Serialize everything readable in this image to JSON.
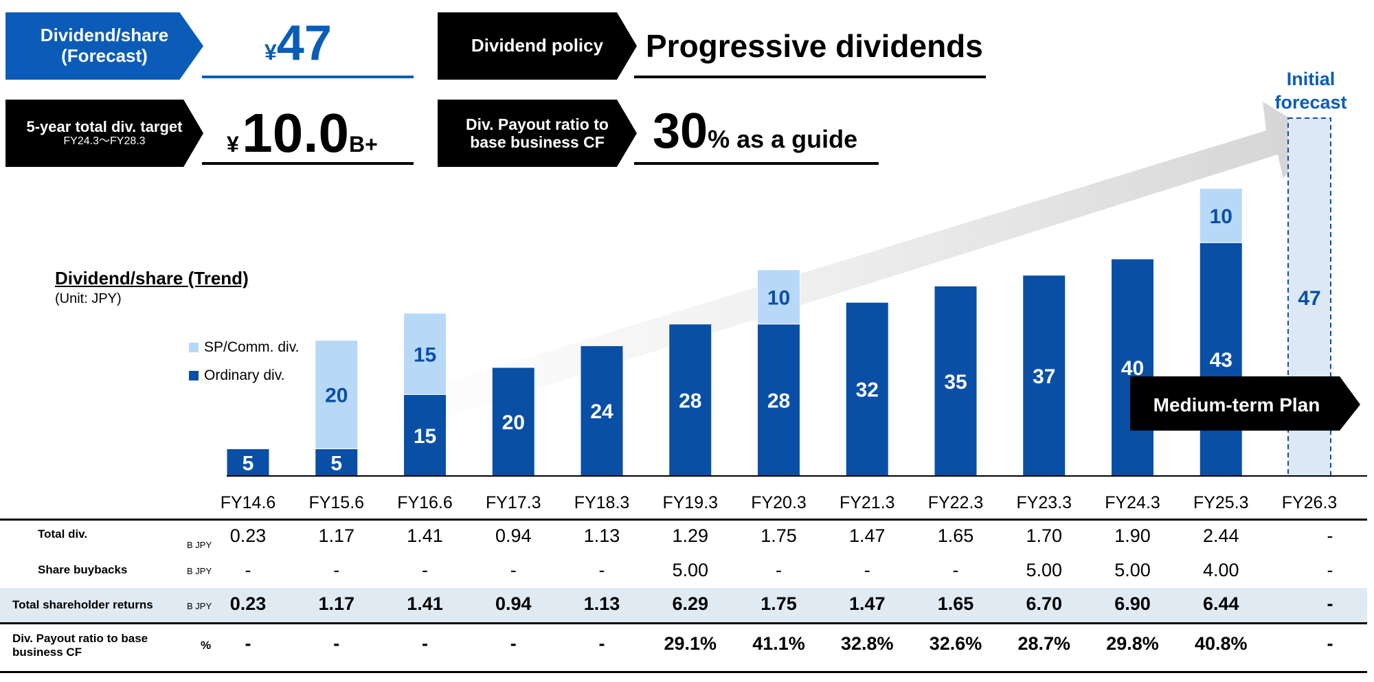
{
  "header": {
    "dividend_forecast_label": "Dividend/share\n(Forecast)",
    "dividend_forecast_currency": "¥",
    "dividend_forecast_value": "47",
    "total_target_label": "5-year total div. target",
    "total_target_period": "FY24.3～FY28.3",
    "total_target_currency": "¥",
    "total_target_value": "10.0",
    "total_target_suffix": "B+",
    "policy_label": "Dividend policy",
    "policy_value": "Progressive dividends",
    "payout_label": "Div. Payout ratio to\nbase business CF",
    "payout_value": "30",
    "payout_suffix": "% as a guide"
  },
  "chart_data": {
    "type": "bar",
    "title": "Dividend/share (Trend)",
    "unit_label": "(Unit: JPY)",
    "legend": [
      "SP/Comm. div.",
      "Ordinary div."
    ],
    "categories": [
      "FY14.6",
      "FY15.6",
      "FY16.6",
      "FY17.3",
      "FY18.3",
      "FY19.3",
      "FY20.3",
      "FY21.3",
      "FY22.3",
      "FY23.3",
      "FY24.3",
      "FY25.3",
      "FY26.3"
    ],
    "series": [
      {
        "name": "Ordinary div.",
        "values": [
          5,
          5,
          15,
          20,
          24,
          28,
          28,
          32,
          35,
          37,
          40,
          43,
          null
        ]
      },
      {
        "name": "SP/Comm. div.",
        "values": [
          null,
          20,
          15,
          null,
          null,
          null,
          10,
          null,
          null,
          null,
          null,
          10,
          null
        ]
      },
      {
        "name": "Initial forecast",
        "values": [
          null,
          null,
          null,
          null,
          null,
          null,
          null,
          null,
          null,
          null,
          null,
          null,
          47
        ]
      }
    ],
    "forecast_label": "Initial\nforecast",
    "plan_label": "Medium-term Plan",
    "colors": {
      "ordinary": "#0a4fa6",
      "special": "#b8d8f8",
      "forecast": "#dce9f5",
      "arrow": "#d4d4d4"
    }
  },
  "table": {
    "rows": [
      {
        "label": "Total div.",
        "unit": "B JPY",
        "values": [
          "0.23",
          "1.17",
          "1.41",
          "0.94",
          "1.13",
          "1.29",
          "1.75",
          "1.47",
          "1.65",
          "1.70",
          "1.90",
          "2.44",
          "-"
        ]
      },
      {
        "label": "Share buybacks",
        "unit": "B JPY",
        "values": [
          "-",
          "-",
          "-",
          "-",
          "-",
          "5.00",
          "-",
          "-",
          "-",
          "5.00",
          "5.00",
          "4.00",
          "-"
        ]
      },
      {
        "label": "Total shareholder returns",
        "unit": "B JPY",
        "values": [
          "0.23",
          "1.17",
          "1.41",
          "0.94",
          "1.13",
          "6.29",
          "1.75",
          "1.47",
          "1.65",
          "6.70",
          "6.90",
          "6.44",
          "-"
        ]
      },
      {
        "label": "Div. Payout ratio to base\nbusiness CF",
        "unit": "%",
        "values": [
          "-",
          "-",
          "-",
          "-",
          "-",
          "29.1%",
          "41.1%",
          "32.8%",
          "32.6%",
          "28.7%",
          "29.8%",
          "40.8%",
          "-"
        ]
      }
    ]
  }
}
